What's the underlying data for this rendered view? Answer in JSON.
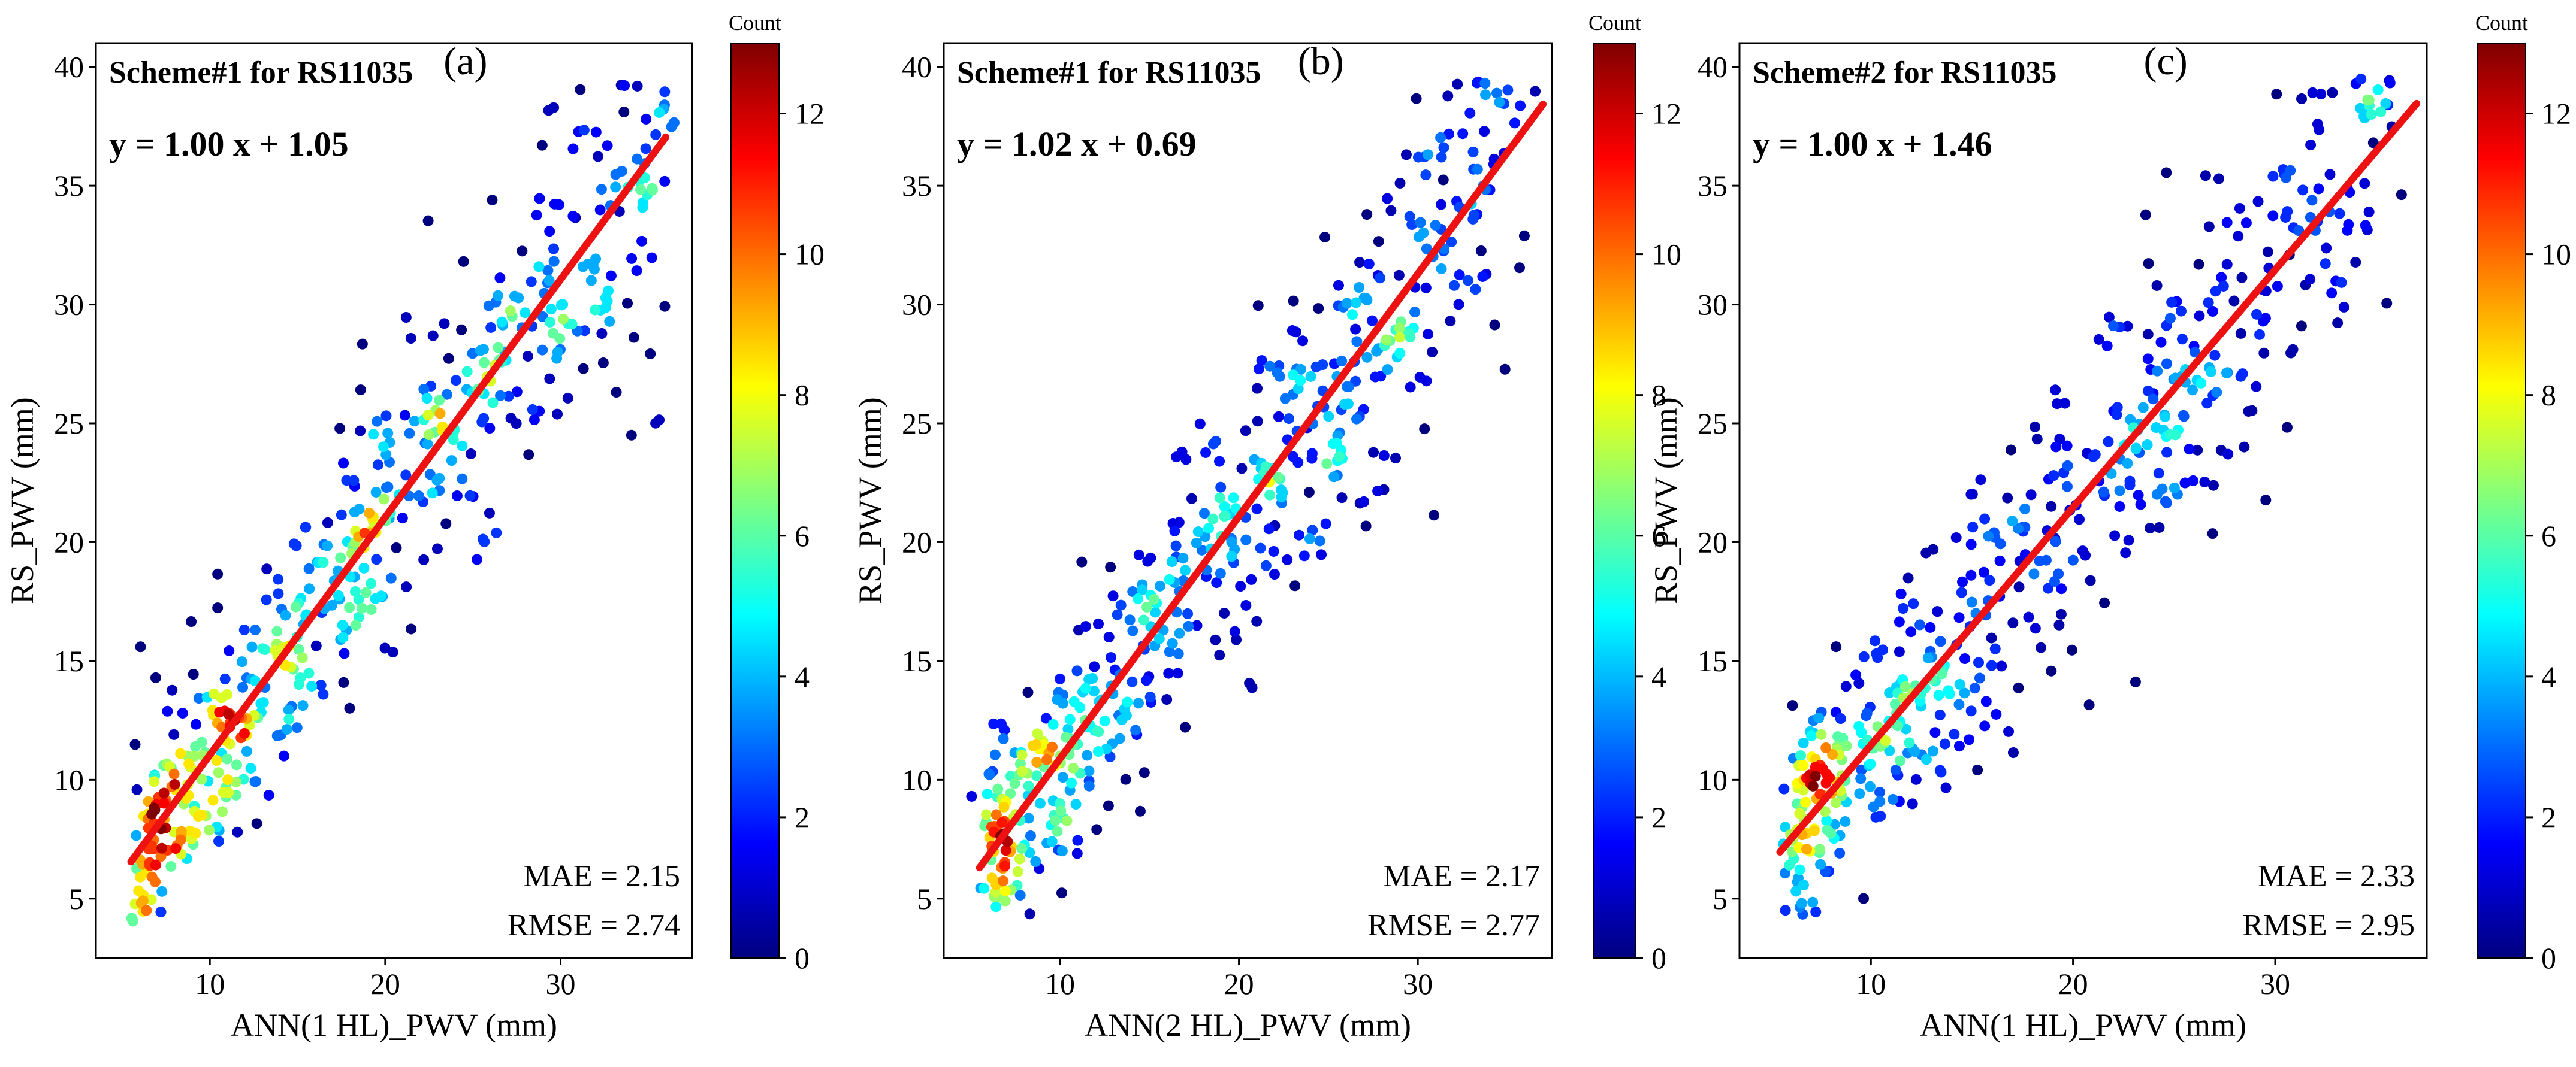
{
  "figure": {
    "colormap": [
      "#00007f",
      "#0000ff",
      "#007fff",
      "#00ffff",
      "#7fff7f",
      "#ffff00",
      "#ff7f00",
      "#ff0000",
      "#7f0000"
    ],
    "regression_line_color": "#ee1111"
  },
  "chart_data": [
    {
      "type": "scatter",
      "panel_label": "(a)",
      "title": "Scheme#1 for RS11035",
      "equation": "y = 1.00 x + 1.05",
      "xlabel": "ANN(1 HL)_PWV (mm)",
      "ylabel": "RS_PWV (mm)",
      "xlim": [
        3.5,
        37.5
      ],
      "ylim": [
        2.5,
        41
      ],
      "xticks": [
        10,
        20,
        30
      ],
      "yticks": [
        5,
        10,
        15,
        20,
        25,
        30,
        35,
        40
      ],
      "slope": 1.0,
      "intercept": 1.05,
      "fit_x_range": [
        5.5,
        36
      ],
      "mae_text": "MAE = 2.15",
      "rmse_text": "RMSE = 2.74",
      "n_points": 520,
      "noise": 2.5,
      "seed": 11,
      "colorbar": {
        "label": "Count",
        "min": 0,
        "max": 13,
        "ticks": [
          0,
          2,
          4,
          6,
          8,
          10,
          12
        ]
      }
    },
    {
      "type": "scatter",
      "panel_label": "(b)",
      "title": "Scheme#1 for RS11035",
      "equation": "y = 1.02 x + 0.69",
      "xlabel": "ANN(2 HL)_PWV (mm)",
      "ylabel": "RS_PWV (mm)",
      "xlim": [
        3.5,
        37.5
      ],
      "ylim": [
        2.5,
        41
      ],
      "xticks": [
        10,
        20,
        30
      ],
      "yticks": [
        5,
        10,
        15,
        20,
        25,
        30,
        35,
        40
      ],
      "slope": 1.02,
      "intercept": 0.69,
      "fit_x_range": [
        5.5,
        37
      ],
      "mae_text": "MAE = 2.17",
      "rmse_text": "RMSE = 2.77",
      "n_points": 520,
      "noise": 2.5,
      "seed": 23,
      "colorbar": {
        "label": "Count",
        "min": 0,
        "max": 13,
        "ticks": [
          0,
          2,
          4,
          6,
          8,
          10,
          12
        ]
      }
    },
    {
      "type": "scatter",
      "panel_label": "(c)",
      "title": "Scheme#2 for RS11035",
      "equation": "y = 1.00 x + 1.46",
      "xlabel": "ANN(1 HL)_PWV (mm)",
      "ylabel": "RS_PWV (mm)",
      "xlim": [
        3.5,
        37.5
      ],
      "ylim": [
        2.5,
        41
      ],
      "xticks": [
        10,
        20,
        30
      ],
      "yticks": [
        5,
        10,
        15,
        20,
        25,
        30,
        35,
        40
      ],
      "slope": 1.0,
      "intercept": 1.46,
      "fit_x_range": [
        5.5,
        37
      ],
      "mae_text": "MAE = 2.33",
      "rmse_text": "RMSE = 2.95",
      "n_points": 520,
      "noise": 2.6,
      "seed": 37,
      "colorbar": {
        "label": "Count",
        "min": 0,
        "max": 13,
        "ticks": [
          0,
          2,
          4,
          6,
          8,
          10,
          12
        ]
      }
    }
  ]
}
